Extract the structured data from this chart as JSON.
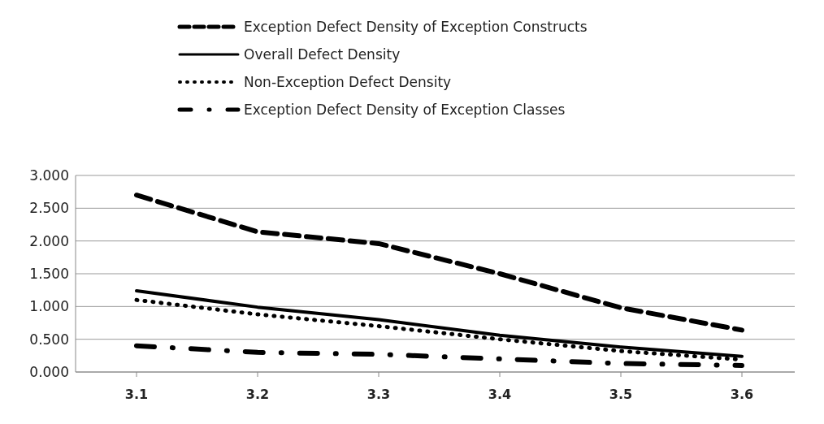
{
  "chart_data": {
    "type": "line",
    "categories": [
      "3.1",
      "3.2",
      "3.3",
      "3.4",
      "3.5",
      "3.6"
    ],
    "series": [
      {
        "name": "Exception Defect Density of Exception Constructs",
        "color": "#000000",
        "line_style": "dashed",
        "values": [
          2.7,
          2.14,
          1.96,
          1.5,
          0.98,
          0.64
        ]
      },
      {
        "name": "Overall Defect Density",
        "color": "#000000",
        "line_style": "solid",
        "values": [
          1.24,
          0.99,
          0.8,
          0.56,
          0.38,
          0.24
        ]
      },
      {
        "name": "Non-Exception Defect Density",
        "color": "#000000",
        "line_style": "dotted",
        "values": [
          1.1,
          0.88,
          0.7,
          0.5,
          0.32,
          0.19
        ]
      },
      {
        "name": "Exception Defect Density of Exception Classes",
        "color": "#000000",
        "line_style": "dashdot",
        "values": [
          0.4,
          0.3,
          0.27,
          0.2,
          0.13,
          0.1
        ]
      }
    ],
    "ylim": [
      0,
      3
    ],
    "yticks": [
      {
        "value": 0,
        "label": "0.000"
      },
      {
        "value": 0.5,
        "label": "0.500"
      },
      {
        "value": 1,
        "label": "1.000"
      },
      {
        "value": 1.5,
        "label": "1.500"
      },
      {
        "value": 2,
        "label": "2.000"
      },
      {
        "value": 2.5,
        "label": "2.500"
      },
      {
        "value": 3,
        "label": "3.000"
      }
    ],
    "grid": "y",
    "legend": "top",
    "marker": "none"
  }
}
